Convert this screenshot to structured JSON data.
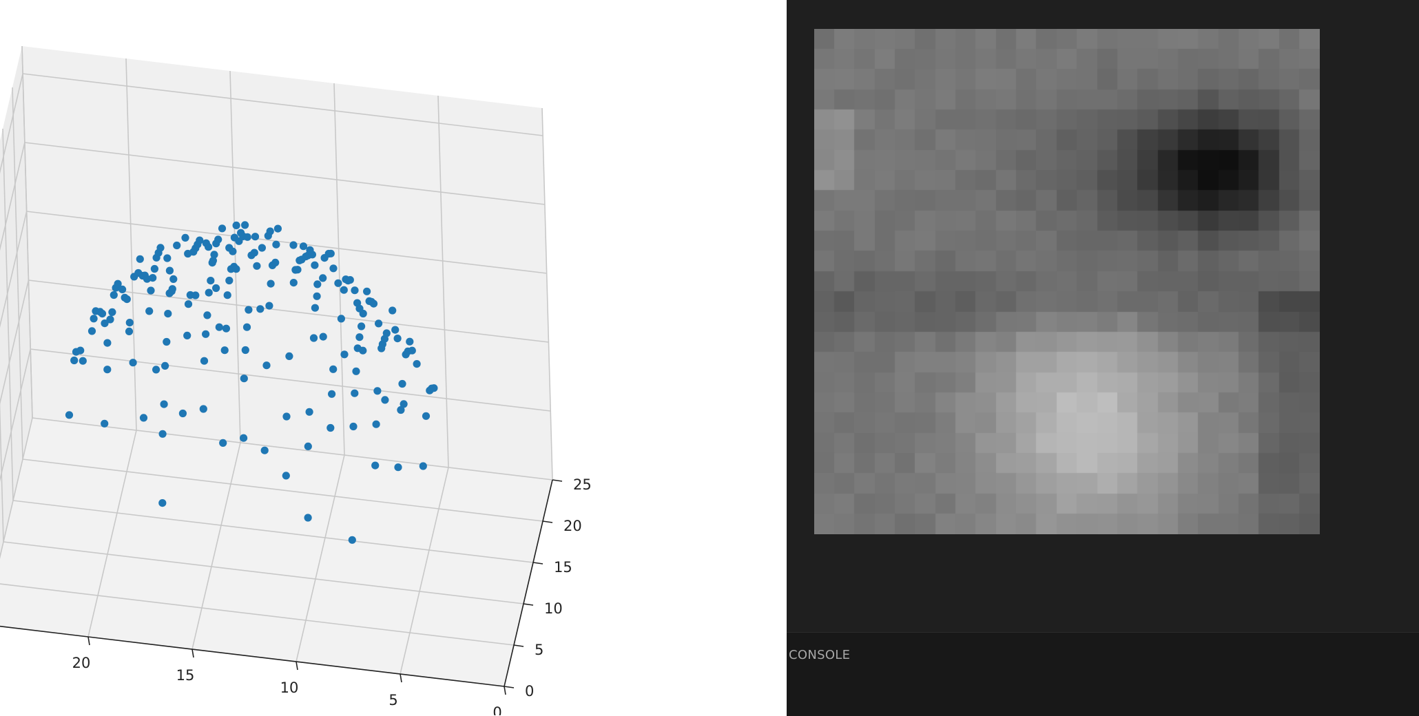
{
  "plot": {
    "type": "scatter3d",
    "point_color": "#1f77b4",
    "pane_color": "#f2f2f2",
    "grid_color": "#c8c8c8",
    "x_ticks": [
      "0",
      "5",
      "10",
      "15",
      "20",
      "25"
    ],
    "y_ticks": [
      "0",
      "5",
      "10",
      "15",
      "20",
      "25"
    ],
    "x_range": [
      0,
      25
    ],
    "y_range": [
      0,
      25
    ],
    "grid": true
  },
  "viewer": {
    "console_label": "CONSOLE",
    "background": "#1e1e1e",
    "image_style": "grayscale pixel grid 25x25"
  }
}
